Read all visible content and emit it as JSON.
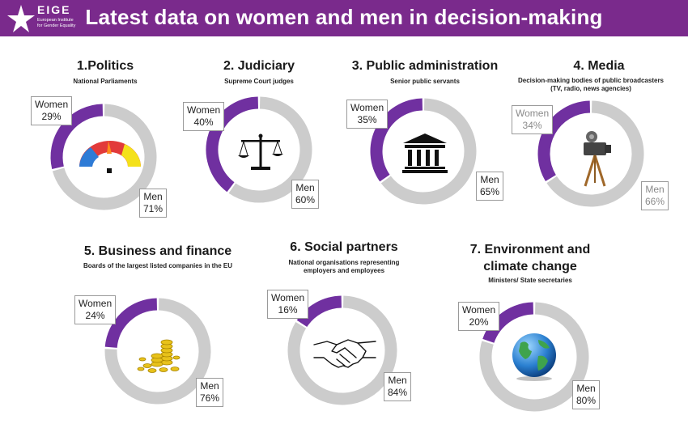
{
  "header": {
    "title": "Latest data on women and men in decision-making",
    "logo": {
      "brand": "EIGE",
      "line1": "European Institute",
      "line2": "for Gender Equality"
    }
  },
  "colors": {
    "header_bg": "#7a2a8c",
    "women": "#7030a0",
    "men": "#cccccc"
  },
  "chart_data": [
    {
      "type": "pie",
      "title": "1.Politics",
      "subtitle": "National Parliaments",
      "categories": [
        "Women",
        "Men"
      ],
      "values": [
        29,
        71
      ],
      "labels": {
        "women_name": "Women",
        "women_pct": "29%",
        "men_name": "Men",
        "men_pct": "71%"
      },
      "icon": "parliament-icon"
    },
    {
      "type": "pie",
      "title": "2. Judiciary",
      "subtitle": "Supreme Court judges",
      "categories": [
        "Women",
        "Men"
      ],
      "values": [
        40,
        60
      ],
      "labels": {
        "women_name": "Women",
        "women_pct": "40%",
        "men_name": "Men",
        "men_pct": "60%"
      },
      "icon": "scales-icon"
    },
    {
      "type": "pie",
      "title": "3. Public administration",
      "subtitle": "Senior public servants",
      "categories": [
        "Women",
        "Men"
      ],
      "values": [
        35,
        65
      ],
      "labels": {
        "women_name": "Women",
        "women_pct": "35%",
        "men_name": "Men",
        "men_pct": "65%"
      },
      "icon": "government-building-icon"
    },
    {
      "type": "pie",
      "title": "4. Media",
      "subtitle": "Decision-making bodies of public broadcasters",
      "subtitle2": "(TV, radio, news agencies)",
      "categories": [
        "Women",
        "Men"
      ],
      "values": [
        34,
        66
      ],
      "labels": {
        "women_name": "Women",
        "women_pct": "34%",
        "men_name": "Men",
        "men_pct": "66%"
      },
      "icon": "film-camera-icon"
    },
    {
      "type": "pie",
      "title": "5. Business and finance",
      "subtitle": "Boards of the largest listed companies in the EU",
      "categories": [
        "Women",
        "Men"
      ],
      "values": [
        24,
        76
      ],
      "labels": {
        "women_name": "Women",
        "women_pct": "24%",
        "men_name": "Men",
        "men_pct": "76%"
      },
      "icon": "gold-coins-icon"
    },
    {
      "type": "pie",
      "title": "6. Social partners",
      "subtitle": "National organisations representing",
      "subtitle2": "employers and employees",
      "categories": [
        "Women",
        "Men"
      ],
      "values": [
        16,
        84
      ],
      "labels": {
        "women_name": "Women",
        "women_pct": "16%",
        "men_name": "Men",
        "men_pct": "84%"
      },
      "icon": "handshake-icon"
    },
    {
      "type": "pie",
      "title": "7. Environment and",
      "title2": "climate change",
      "subtitle": "Ministers/ State secretaries",
      "categories": [
        "Women",
        "Men"
      ],
      "values": [
        20,
        80
      ],
      "labels": {
        "women_name": "Women",
        "women_pct": "20%",
        "men_name": "Men",
        "men_pct": "80%"
      },
      "icon": "globe-icon"
    }
  ]
}
